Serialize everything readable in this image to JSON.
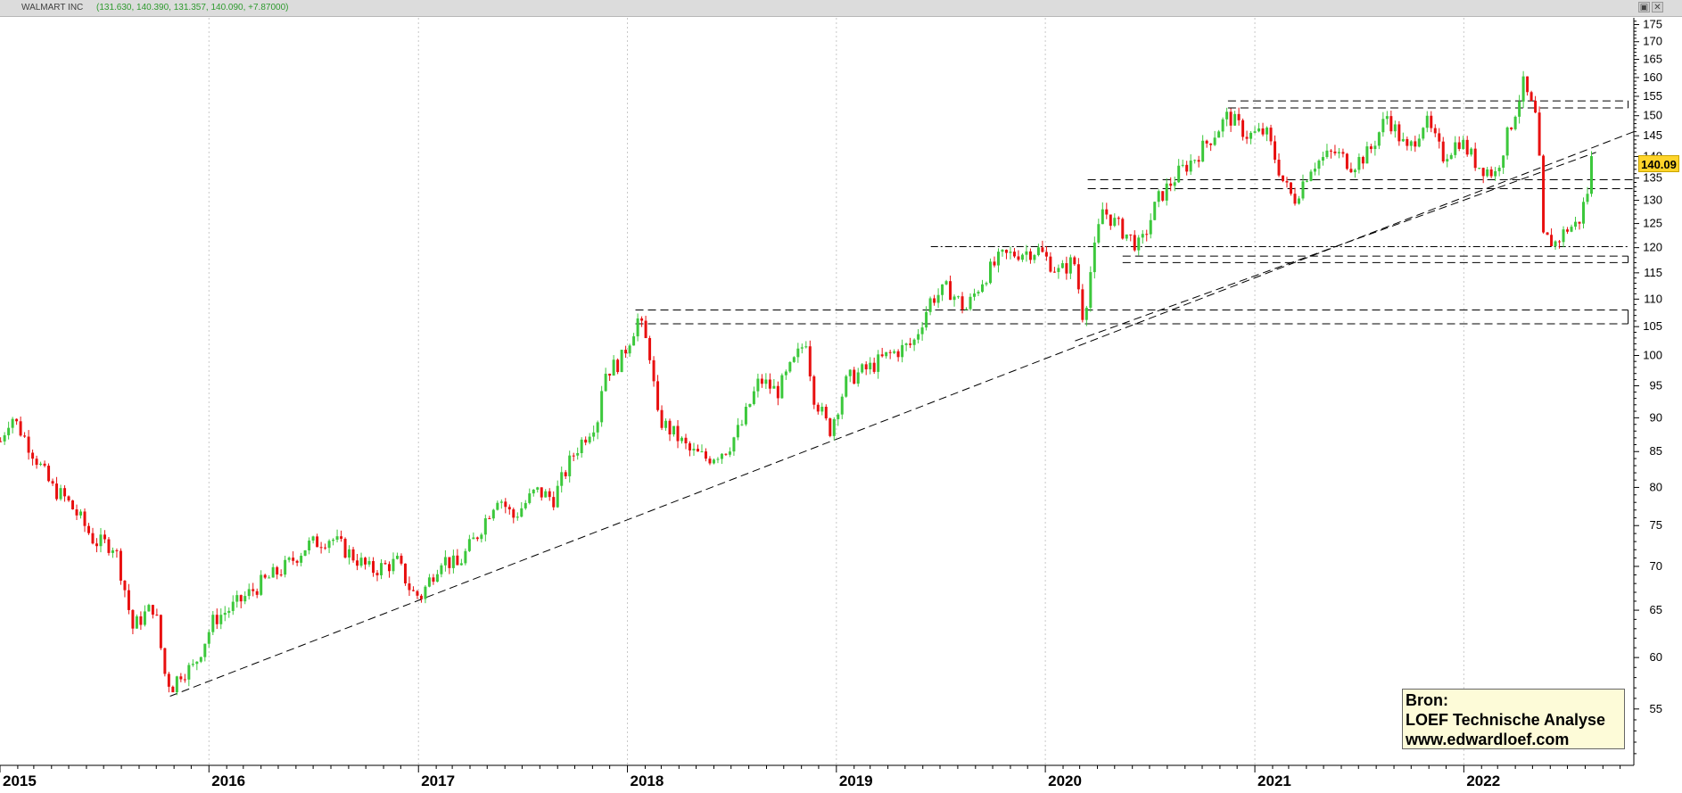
{
  "window": {
    "title": "WALMART INC",
    "ohlc": "(131.630, 140.390, 131.357, 140.090, +7.87000)",
    "buttons": [
      "▣",
      "✕"
    ]
  },
  "source_box": {
    "line1": "Bron:",
    "line2": "LOEF Technische Analyse",
    "line3": "www.edwardloef.com"
  },
  "last_price_label": "140.09",
  "colors": {
    "up": "#3cc83c",
    "down": "#e81010",
    "grid": "#c8c8c8",
    "axis": "#000000",
    "badge": "#ffd42a"
  },
  "chart_data": {
    "type": "candlestick",
    "title": "WALMART INC",
    "x_range": [
      "2015-01-01",
      "2022-10-25"
    ],
    "y_range": [
      50,
      177
    ],
    "y_scale": "log",
    "y_ticks": [
      55,
      60,
      65,
      70,
      75,
      80,
      85,
      90,
      95,
      100,
      105,
      110,
      115,
      120,
      125,
      130,
      135,
      140,
      145,
      150,
      155,
      160,
      165,
      170,
      175
    ],
    "x_tick_labels": [
      "2015",
      "2016",
      "2017",
      "2018",
      "2019",
      "2020",
      "2021",
      "2022"
    ],
    "x_tick_dates": [
      "2015-01-01",
      "2016-01-01",
      "2017-01-01",
      "2018-01-01",
      "2019-01-01",
      "2020-01-01",
      "2021-01-01",
      "2022-01-01"
    ],
    "grid": "vertical dotted at year boundaries",
    "last_price": 140.09,
    "price_path": [
      [
        "2015-01-02",
        86.5
      ],
      [
        "2015-01-20",
        90.5
      ],
      [
        "2015-02-20",
        86
      ],
      [
        "2015-04-01",
        80
      ],
      [
        "2015-04-25",
        78.5
      ],
      [
        "2015-05-20",
        76
      ],
      [
        "2015-06-15",
        73
      ],
      [
        "2015-07-20",
        72.5
      ],
      [
        "2015-08-10",
        66.5
      ],
      [
        "2015-08-20",
        63
      ],
      [
        "2015-09-10",
        64.5
      ],
      [
        "2015-09-28",
        65.5
      ],
      [
        "2015-10-15",
        58.5
      ],
      [
        "2015-10-28",
        57
      ],
      [
        "2015-11-12",
        58.5
      ],
      [
        "2015-12-05",
        59
      ],
      [
        "2016-01-10",
        64
      ],
      [
        "2016-02-15",
        65.5
      ],
      [
        "2016-04-01",
        68
      ],
      [
        "2016-05-15",
        70
      ],
      [
        "2016-06-20",
        72.5
      ],
      [
        "2016-08-01",
        73.5
      ],
      [
        "2016-08-25",
        72
      ],
      [
        "2016-10-10",
        69.5
      ],
      [
        "2016-11-25",
        70.5
      ],
      [
        "2016-12-20",
        67
      ],
      [
        "2017-01-05",
        66.5
      ],
      [
        "2017-02-10",
        71
      ],
      [
        "2017-03-10",
        70
      ],
      [
        "2017-04-15",
        74
      ],
      [
        "2017-05-20",
        79
      ],
      [
        "2017-06-15",
        76
      ],
      [
        "2017-07-25",
        79.5
      ],
      [
        "2017-08-25",
        78.5
      ],
      [
        "2017-10-01",
        85
      ],
      [
        "2017-11-10",
        90
      ],
      [
        "2017-11-20",
        97
      ],
      [
        "2017-12-20",
        99
      ],
      [
        "2018-01-20",
        106.5
      ],
      [
        "2018-02-10",
        100
      ],
      [
        "2018-02-22",
        90
      ],
      [
        "2018-03-30",
        87
      ],
      [
        "2018-04-20",
        85
      ],
      [
        "2018-05-20",
        84
      ],
      [
        "2018-06-25",
        85.5
      ],
      [
        "2018-07-20",
        89
      ],
      [
        "2018-08-20",
        96
      ],
      [
        "2018-09-20",
        94
      ],
      [
        "2018-10-20",
        99
      ],
      [
        "2018-11-10",
        103
      ],
      [
        "2018-11-20",
        94
      ],
      [
        "2018-12-20",
        88
      ],
      [
        "2019-01-20",
        96
      ],
      [
        "2019-03-01",
        98
      ],
      [
        "2019-04-01",
        100
      ],
      [
        "2019-05-15",
        102
      ],
      [
        "2019-06-15",
        110
      ],
      [
        "2019-07-15",
        112
      ],
      [
        "2019-08-15",
        108
      ],
      [
        "2019-09-15",
        114
      ],
      [
        "2019-10-15",
        118
      ],
      [
        "2019-11-15",
        119
      ],
      [
        "2019-12-20",
        119.5
      ],
      [
        "2020-01-25",
        115
      ],
      [
        "2020-02-20",
        117.5
      ],
      [
        "2020-03-08",
        106
      ],
      [
        "2020-03-18",
        114
      ],
      [
        "2020-04-10",
        128
      ],
      [
        "2020-05-10",
        124
      ],
      [
        "2020-06-15",
        120
      ],
      [
        "2020-07-15",
        130
      ],
      [
        "2020-08-20",
        136
      ],
      [
        "2020-09-20",
        140
      ],
      [
        "2020-10-25",
        146
      ],
      [
        "2020-11-15",
        150
      ],
      [
        "2020-12-20",
        145
      ],
      [
        "2021-01-20",
        146
      ],
      [
        "2021-02-20",
        134
      ],
      [
        "2021-03-10",
        130
      ],
      [
        "2021-04-10",
        138
      ],
      [
        "2021-05-20",
        141
      ],
      [
        "2021-06-20",
        138
      ],
      [
        "2021-07-20",
        141
      ],
      [
        "2021-08-20",
        150
      ],
      [
        "2021-09-25",
        141
      ],
      [
        "2021-10-25",
        149
      ],
      [
        "2021-11-25",
        140
      ],
      [
        "2021-12-25",
        144
      ],
      [
        "2022-01-25",
        138
      ],
      [
        "2022-02-25",
        136
      ],
      [
        "2022-03-25",
        148
      ],
      [
        "2022-04-15",
        158
      ],
      [
        "2022-05-10",
        148
      ],
      [
        "2022-05-18",
        122
      ],
      [
        "2022-06-10",
        121
      ],
      [
        "2022-07-01",
        124
      ],
      [
        "2022-07-20",
        125
      ],
      [
        "2022-08-05",
        132
      ],
      [
        "2022-08-16",
        140.09
      ]
    ],
    "trendlines": [
      {
        "style": "dashed",
        "points": [
          [
            "2015-10-25",
            56.2
          ],
          [
            "2022-10-25",
            146
          ]
        ]
      },
      {
        "style": "dashed",
        "points": [
          [
            "2020-02-22",
            102.5
          ],
          [
            "2022-08-20",
            141
          ]
        ]
      }
    ],
    "horizontal_levels": [
      {
        "style": "dashed",
        "value": 108,
        "from": "2018-01-15",
        "to": "2022-10-15"
      },
      {
        "style": "dashed",
        "value": 105.5,
        "from": "2018-01-15",
        "to": "2022-10-15"
      },
      {
        "style": "dash-dot",
        "value": 120.2,
        "from": "2019-06-15",
        "to": "2022-10-15"
      },
      {
        "style": "dashed",
        "value": 118.3,
        "from": "2020-05-15",
        "to": "2022-10-15"
      },
      {
        "style": "dashed",
        "value": 117,
        "from": "2020-05-15",
        "to": "2022-10-15"
      },
      {
        "style": "dashed",
        "value": 134.6,
        "from": "2020-03-15",
        "to": "2022-10-25"
      },
      {
        "style": "dashed",
        "value": 132.6,
        "from": "2020-03-15",
        "to": "2022-10-25"
      },
      {
        "style": "dashed",
        "value": 153.8,
        "from": "2020-11-15",
        "to": "2022-10-15"
      },
      {
        "style": "dashed",
        "value": 152,
        "from": "2020-11-15",
        "to": "2022-10-15"
      }
    ]
  }
}
